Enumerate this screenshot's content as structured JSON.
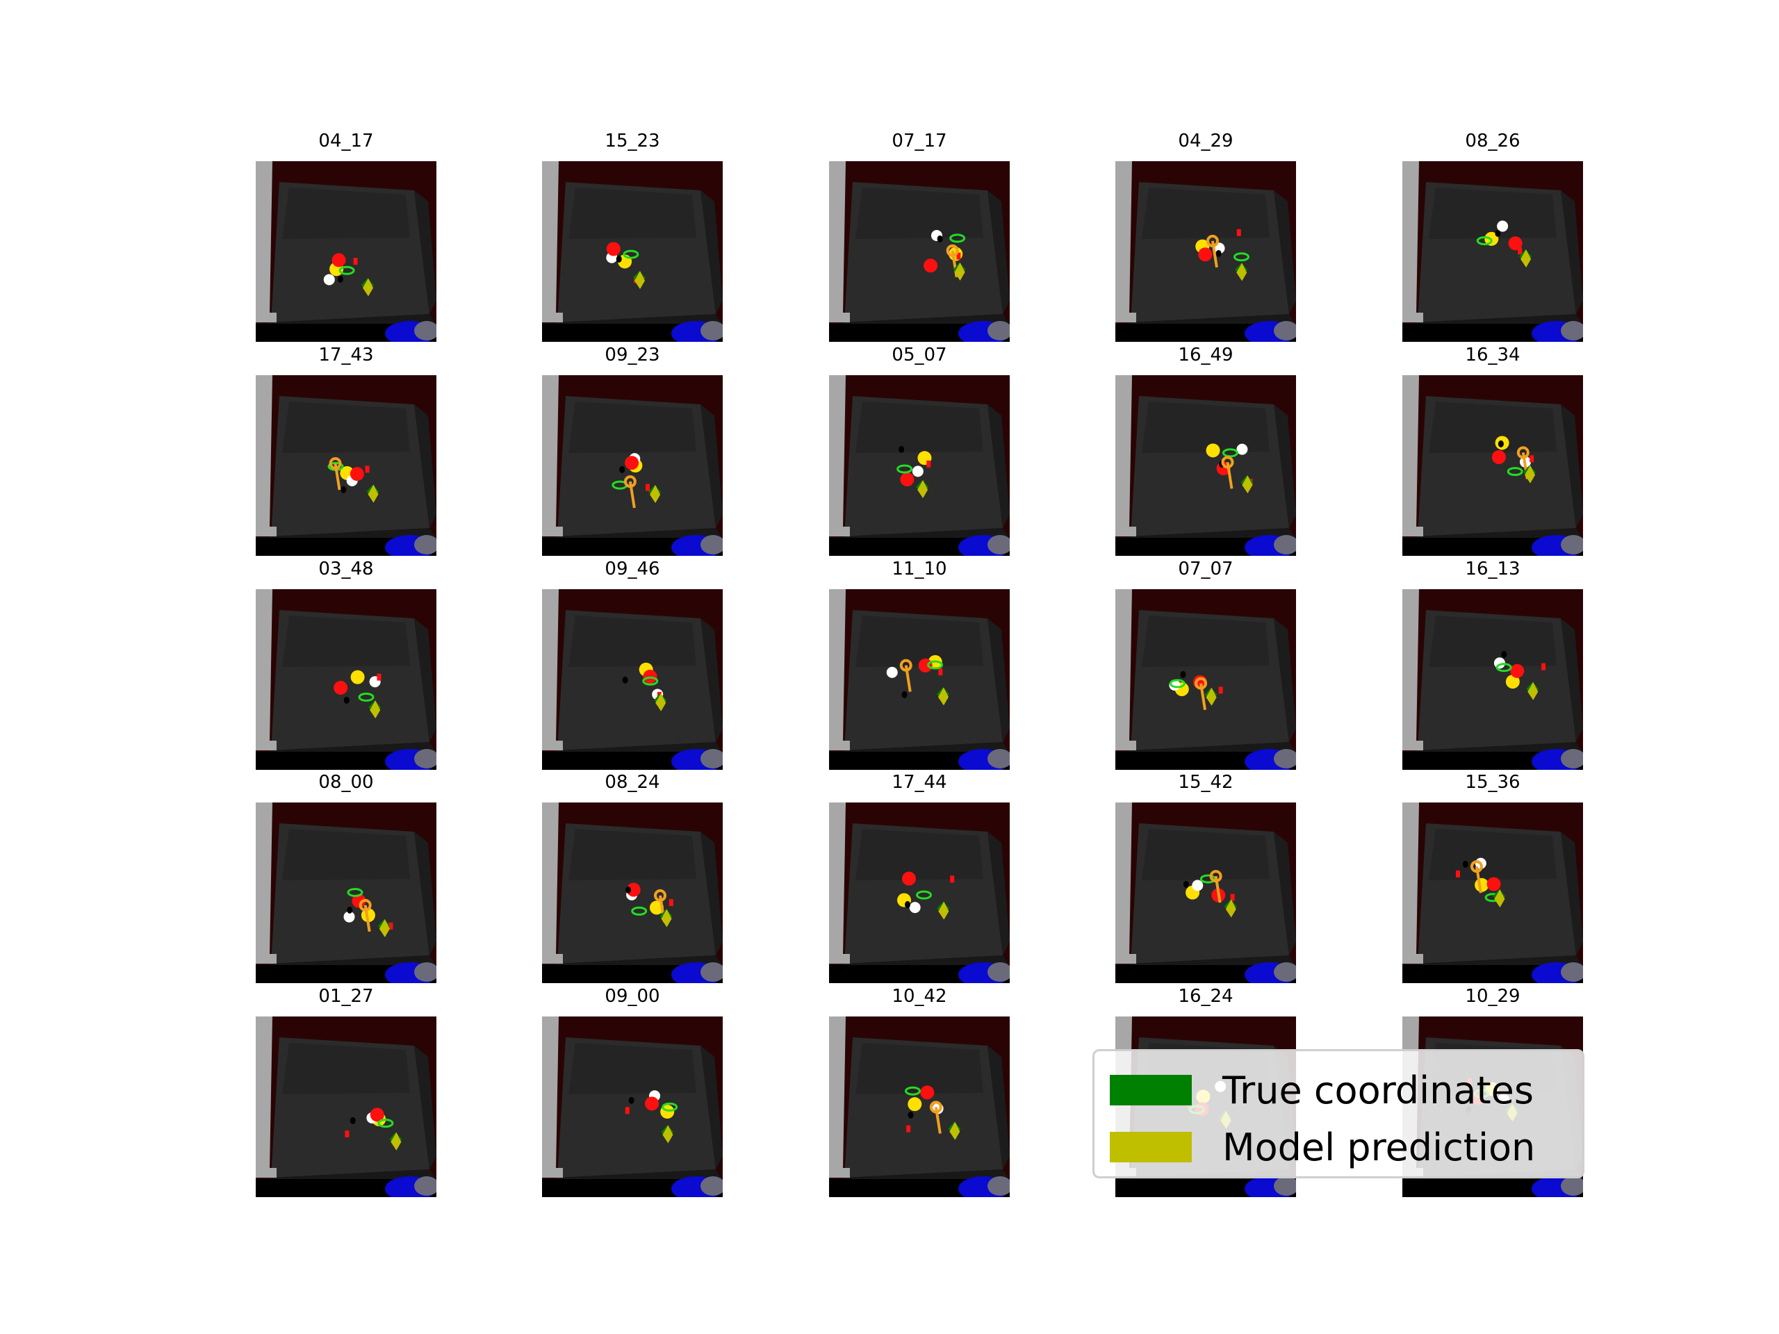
{
  "colors": {
    "background": "#ffffff",
    "true_coordinates": "#008000",
    "model_prediction": "#bfbf00",
    "table_surface": "#232323",
    "wall": "#2a0404"
  },
  "legend": [
    {
      "label": "True coordinates",
      "color": "#008000"
    },
    {
      "label": "Model prediction",
      "color": "#bfbf00"
    }
  ],
  "panels": [
    {
      "title": "04_17"
    },
    {
      "title": "15_23"
    },
    {
      "title": "07_17"
    },
    {
      "title": "04_29"
    },
    {
      "title": "08_26"
    },
    {
      "title": "17_43"
    },
    {
      "title": "09_23"
    },
    {
      "title": "05_07"
    },
    {
      "title": "16_49"
    },
    {
      "title": "16_34"
    },
    {
      "title": "03_48"
    },
    {
      "title": "09_46"
    },
    {
      "title": "11_10"
    },
    {
      "title": "07_07"
    },
    {
      "title": "16_13"
    },
    {
      "title": "08_00"
    },
    {
      "title": "08_24"
    },
    {
      "title": "17_44"
    },
    {
      "title": "15_42"
    },
    {
      "title": "15_36"
    },
    {
      "title": "01_27"
    },
    {
      "title": "09_00"
    },
    {
      "title": "10_42"
    },
    {
      "title": "16_24"
    },
    {
      "title": "10_29"
    }
  ]
}
